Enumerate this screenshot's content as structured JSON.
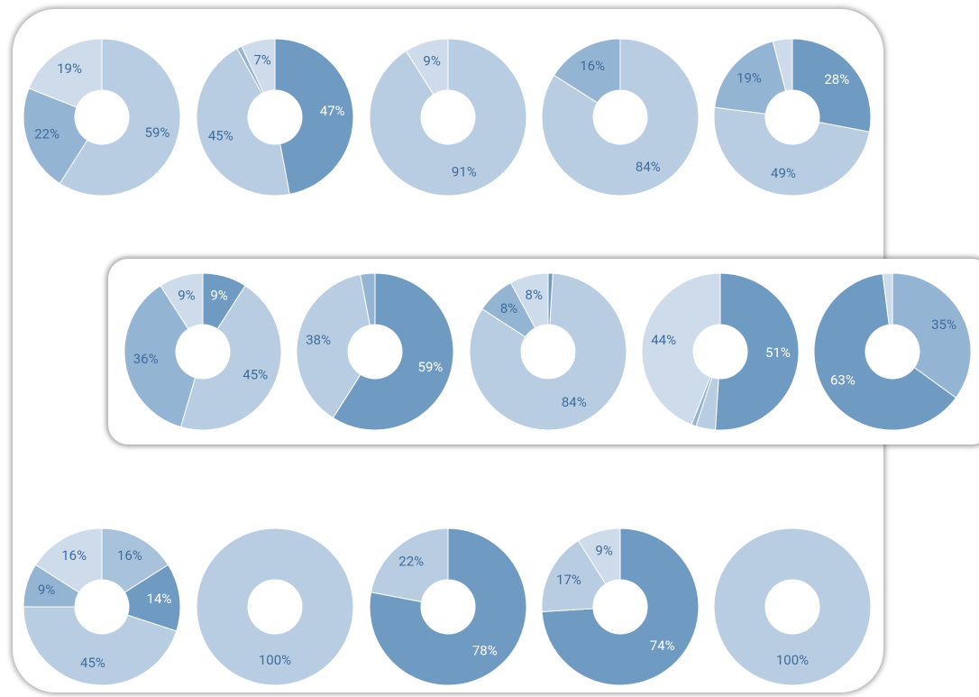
{
  "chart_data": [
    {
      "type": "pie",
      "values": [
        59,
        22,
        19
      ],
      "value_labels": [
        "59%",
        "22%",
        "19%"
      ],
      "colors": [
        "#b8cde2",
        "#94b4d4",
        "#cddbea"
      ]
    },
    {
      "type": "pie",
      "values": [
        47,
        45,
        1,
        7
      ],
      "value_labels": [
        "47%",
        "45%",
        null,
        "7%"
      ],
      "colors": [
        "#6f9bc2",
        "#b8cde2",
        "#94b4d4",
        "#cddbea"
      ]
    },
    {
      "type": "pie",
      "values": [
        91,
        9
      ],
      "value_labels": [
        "91%",
        "9%"
      ],
      "colors": [
        "#b8cde2",
        "#cddbea"
      ]
    },
    {
      "type": "pie",
      "values": [
        84,
        16
      ],
      "value_labels": [
        "84%",
        "16%"
      ],
      "colors": [
        "#b8cde2",
        "#94b4d4"
      ]
    },
    {
      "type": "pie",
      "values": [
        28,
        49,
        19,
        4
      ],
      "value_labels": [
        "28%",
        "49%",
        "19%",
        null
      ],
      "colors": [
        "#6f9bc2",
        "#b8cde2",
        "#94b4d4",
        "#cddbea"
      ]
    },
    {
      "type": "pie",
      "values": [
        9,
        45,
        36,
        9
      ],
      "value_labels": [
        "9%",
        "45%",
        "36%",
        "9%"
      ],
      "colors": [
        "#6f9bc2",
        "#b8cde2",
        "#94b4d4",
        "#cddbea"
      ]
    },
    {
      "type": "pie",
      "values": [
        59,
        38,
        3
      ],
      "value_labels": [
        "59%",
        "38%",
        null
      ],
      "colors": [
        "#6f9bc2",
        "#b8cde2",
        "#94b4d4"
      ]
    },
    {
      "type": "pie",
      "values": [
        1,
        84,
        8,
        8
      ],
      "value_labels": [
        null,
        "84%",
        "8%",
        "8%"
      ],
      "colors": [
        "#6f9bc2",
        "#b8cde2",
        "#94b4d4",
        "#cddbea"
      ]
    },
    {
      "type": "pie",
      "values": [
        51,
        4,
        1,
        44
      ],
      "value_labels": [
        "51%",
        null,
        null,
        "44%"
      ],
      "colors": [
        "#6f9bc2",
        "#b8cde2",
        "#94b4d4",
        "#cddbea"
      ]
    },
    {
      "type": "pie",
      "values": [
        35,
        63,
        2
      ],
      "value_labels": [
        "35%",
        "63%",
        null
      ],
      "colors": [
        "#94b4d4",
        "#6f9bc2",
        "#cddbea"
      ]
    },
    {
      "type": "pie",
      "values": [
        16,
        14,
        45,
        9,
        16
      ],
      "value_labels": [
        "16%",
        "14%",
        "45%",
        "9%",
        "16%"
      ],
      "colors": [
        "#a9c2dc",
        "#6f9bc2",
        "#b8cde2",
        "#94b4d4",
        "#cddbea"
      ]
    },
    {
      "type": "pie",
      "values": [
        100
      ],
      "value_labels": [
        "100%"
      ],
      "colors": [
        "#b8cde2"
      ]
    },
    {
      "type": "pie",
      "values": [
        78,
        22
      ],
      "value_labels": [
        "78%",
        "22%"
      ],
      "colors": [
        "#6f9bc2",
        "#b8cde2"
      ]
    },
    {
      "type": "pie",
      "values": [
        74,
        17,
        9
      ],
      "value_labels": [
        "74%",
        "17%",
        "9%"
      ],
      "colors": [
        "#6f9bc2",
        "#b8cde2",
        "#cddbea"
      ]
    },
    {
      "type": "pie",
      "values": [
        100
      ],
      "value_labels": [
        "100%"
      ],
      "colors": [
        "#b8cde2"
      ]
    }
  ]
}
